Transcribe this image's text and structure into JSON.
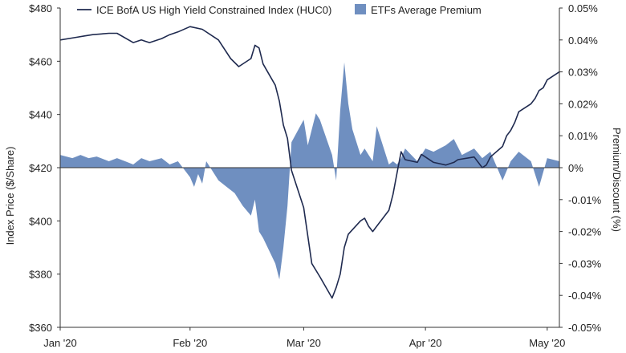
{
  "chart_data": {
    "type": "line",
    "title": "",
    "colors": {
      "index_line": "#1f2a4f",
      "premium_area": "#6f8fc0",
      "axis": "#333333",
      "text": "#222222"
    },
    "legend": {
      "placement": "top",
      "entries": [
        {
          "label": "ICE BofA US High Yield Constrained Index (HUC0)",
          "kind": "line"
        },
        {
          "label": "ETFs Average Premium",
          "kind": "area"
        }
      ]
    },
    "x_axis": {
      "ticks": [
        "Jan '20",
        "Feb '20",
        "Mar '20",
        "Apr '20",
        "May '20"
      ],
      "tick_dates": [
        "2020-01-02",
        "2020-02-03",
        "2020-03-02",
        "2020-04-01",
        "2020-05-01"
      ],
      "range": [
        "2020-01-02",
        "2020-05-04"
      ]
    },
    "y_left": {
      "label": "Index Price ($/Share)",
      "ylim": [
        360,
        480
      ],
      "ticks": [
        360,
        380,
        400,
        420,
        440,
        460,
        480
      ],
      "tick_labels": [
        "$360",
        "$380",
        "$400",
        "$420",
        "$440",
        "$460",
        "$480"
      ]
    },
    "y_right": {
      "label": "Premium/Discount (%)",
      "ylim": [
        -0.05,
        0.05
      ],
      "ticks": [
        -0.05,
        -0.04,
        -0.03,
        -0.02,
        -0.01,
        0,
        0.01,
        0.02,
        0.03,
        0.04,
        0.05
      ],
      "tick_labels": [
        "-0.05%",
        "-0.04%",
        "-0.03%",
        "-0.02%",
        "-0.01%",
        "0%",
        "0.01%",
        "0.02%",
        "0.03%",
        "0.04%",
        "0.05%"
      ]
    },
    "series": [
      {
        "name": "ICE BofA US High Yield Constrained Index (HUC0)",
        "axis": "left",
        "x": [
          "2020-01-02",
          "2020-01-06",
          "2020-01-08",
          "2020-01-10",
          "2020-01-14",
          "2020-01-16",
          "2020-01-20",
          "2020-01-22",
          "2020-01-23",
          "2020-01-24",
          "2020-01-27",
          "2020-01-29",
          "2020-01-31",
          "2020-02-03",
          "2020-02-06",
          "2020-02-10",
          "2020-02-13",
          "2020-02-15",
          "2020-02-18",
          "2020-02-19",
          "2020-02-20",
          "2020-02-21",
          "2020-02-24",
          "2020-02-25",
          "2020-02-26",
          "2020-02-27",
          "2020-02-28",
          "2020-03-02",
          "2020-03-04",
          "2020-03-06",
          "2020-03-09",
          "2020-03-10",
          "2020-03-11",
          "2020-03-12",
          "2020-03-13",
          "2020-03-16",
          "2020-03-17",
          "2020-03-18",
          "2020-03-19",
          "2020-03-20",
          "2020-03-23",
          "2020-03-24",
          "2020-03-25",
          "2020-03-26",
          "2020-03-27",
          "2020-03-30",
          "2020-03-31",
          "2020-04-01",
          "2020-04-03",
          "2020-04-06",
          "2020-04-08",
          "2020-04-09",
          "2020-04-13",
          "2020-04-14",
          "2020-04-15",
          "2020-04-16",
          "2020-04-17",
          "2020-04-20",
          "2020-04-21",
          "2020-04-22",
          "2020-04-23",
          "2020-04-24",
          "2020-04-27",
          "2020-04-28",
          "2020-04-29",
          "2020-04-30",
          "2020-05-01",
          "2020-05-04"
        ],
        "values": [
          468,
          469,
          469.5,
          470,
          470.5,
          470.5,
          467,
          468,
          467.5,
          467,
          468.5,
          470,
          471,
          473,
          472,
          468,
          461,
          458,
          461,
          466,
          465,
          459,
          451,
          445,
          436,
          431,
          419,
          405,
          384,
          379,
          371,
          375,
          380,
          390,
          395,
          400,
          401,
          398,
          396,
          398,
          404,
          410,
          418,
          426,
          423,
          422,
          425,
          424,
          422,
          421,
          422,
          423,
          424,
          422,
          420,
          421,
          424,
          428,
          432,
          434,
          437,
          441,
          444,
          446,
          449,
          450,
          453,
          456
        ]
      },
      {
        "name": "ETFs Average Premium",
        "axis": "right",
        "x": [
          "2020-01-02",
          "2020-01-05",
          "2020-01-07",
          "2020-01-09",
          "2020-01-11",
          "2020-01-14",
          "2020-01-16",
          "2020-01-18",
          "2020-01-20",
          "2020-01-22",
          "2020-01-24",
          "2020-01-27",
          "2020-01-29",
          "2020-01-31",
          "2020-02-03",
          "2020-02-04",
          "2020-02-05",
          "2020-02-06",
          "2020-02-07",
          "2020-02-10",
          "2020-02-12",
          "2020-02-14",
          "2020-02-16",
          "2020-02-18",
          "2020-02-19",
          "2020-02-20",
          "2020-02-21",
          "2020-02-24",
          "2020-02-25",
          "2020-02-26",
          "2020-02-27",
          "2020-02-28",
          "2020-03-02",
          "2020-03-03",
          "2020-03-04",
          "2020-03-05",
          "2020-03-06",
          "2020-03-09",
          "2020-03-10",
          "2020-03-11",
          "2020-03-12",
          "2020-03-13",
          "2020-03-14",
          "2020-03-16",
          "2020-03-17",
          "2020-03-18",
          "2020-03-19",
          "2020-03-20",
          "2020-03-23",
          "2020-03-24",
          "2020-03-25",
          "2020-03-26",
          "2020-03-27",
          "2020-03-30",
          "2020-03-31",
          "2020-04-01",
          "2020-04-03",
          "2020-04-06",
          "2020-04-08",
          "2020-04-10",
          "2020-04-13",
          "2020-04-15",
          "2020-04-17",
          "2020-04-20",
          "2020-04-22",
          "2020-04-24",
          "2020-04-27",
          "2020-04-29",
          "2020-05-01",
          "2020-05-04"
        ],
        "values": [
          0.004,
          0.003,
          0.004,
          0.003,
          0.0035,
          0.002,
          0.003,
          0.002,
          0.001,
          0.003,
          0.002,
          0.003,
          0.001,
          0.002,
          -0.003,
          -0.006,
          -0.002,
          -0.005,
          0.002,
          -0.004,
          -0.006,
          -0.008,
          -0.012,
          -0.015,
          -0.01,
          -0.02,
          -0.022,
          -0.03,
          -0.035,
          -0.025,
          -0.012,
          0.008,
          0.015,
          0.007,
          0.012,
          0.017,
          0.015,
          0.004,
          -0.004,
          0.018,
          0.033,
          0.02,
          0.012,
          0.004,
          0.006,
          0.004,
          0.002,
          0.013,
          0.001,
          0.002,
          0.001,
          0.003,
          0.006,
          0.002,
          0.004,
          0.006,
          0.005,
          0.007,
          0.009,
          0.004,
          0.006,
          0.003,
          0.005,
          -0.004,
          0.002,
          0.005,
          0.002,
          -0.006,
          0.003,
          0.002
        ]
      }
    ],
    "grid": false
  }
}
